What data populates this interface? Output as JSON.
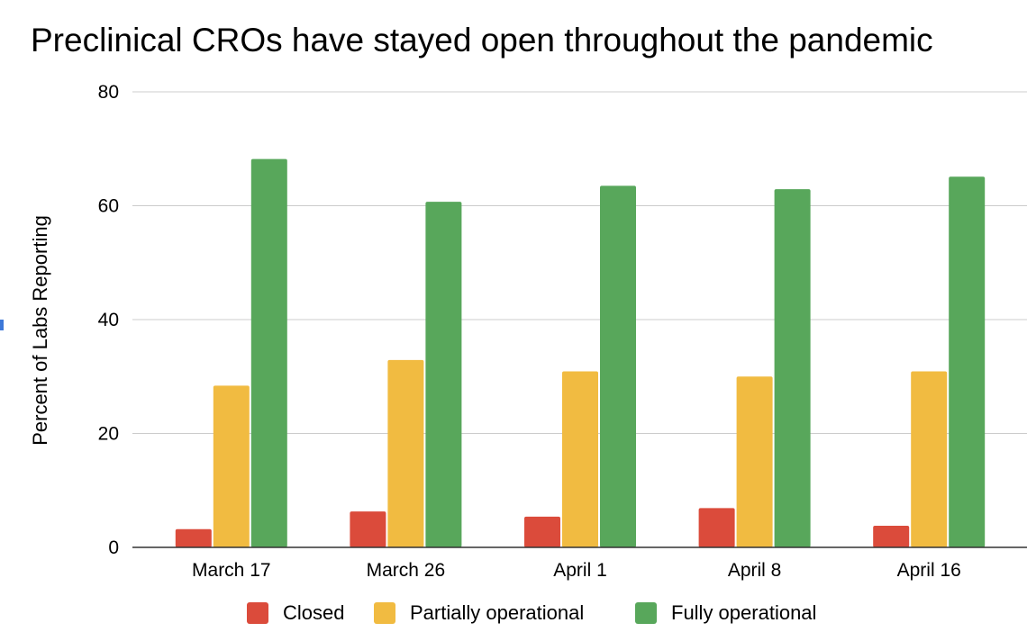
{
  "chart_data": {
    "type": "bar",
    "title": "Preclinical CROs have stayed open throughout the pandemic",
    "xlabel": "",
    "ylabel": "Percent of Labs Reporting",
    "categories": [
      "March 17",
      "March 26",
      "April 1",
      "April 8",
      "April 16"
    ],
    "series": [
      {
        "name": "Closed",
        "color": "#db4b3b",
        "values": [
          3.2,
          6.3,
          5.4,
          6.9,
          3.8
        ]
      },
      {
        "name": "Partially operational",
        "color": "#f1bb41",
        "values": [
          28.4,
          32.9,
          30.9,
          30.0,
          30.9
        ]
      },
      {
        "name": "Fully operational",
        "color": "#58a75b",
        "values": [
          68.2,
          60.7,
          63.5,
          62.9,
          65.1
        ]
      }
    ],
    "ylim": [
      0,
      80
    ],
    "yticks": [
      0,
      20,
      40,
      60,
      80
    ],
    "grid": true,
    "legend": "bottom"
  }
}
